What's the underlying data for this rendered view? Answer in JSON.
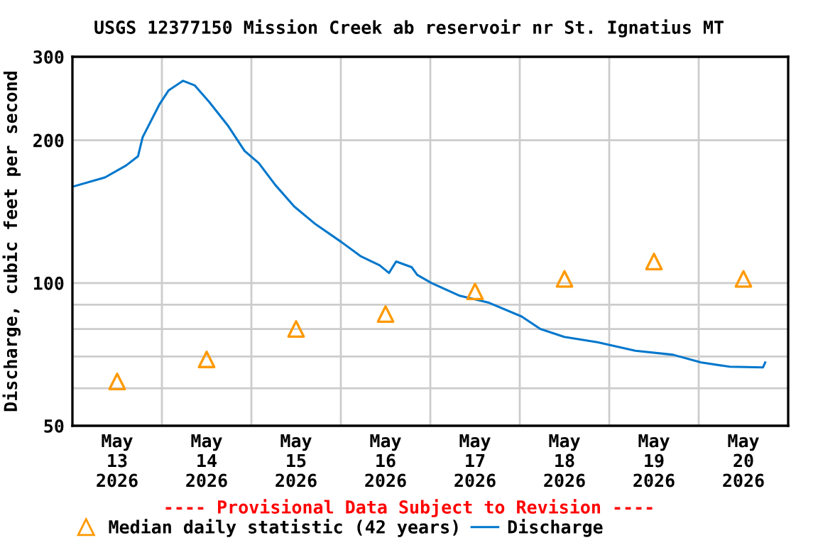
{
  "chart_data": {
    "type": "line",
    "title": "USGS 12377150 Mission Creek ab reservoir nr St. Ignatius MT",
    "ylabel": "Discharge, cubic feet per second",
    "annotations": [
      "---- Provisional Data Subject to Revision ----"
    ],
    "log": "y",
    "grid": true,
    "legend": "bottom",
    "xlim": [
      "2026-05-13T00:00",
      "2026-05-21T00:00"
    ],
    "xticks": [
      {
        "value": "2026-05-13T12:00",
        "label": "May\n13\n2026"
      },
      {
        "value": "2026-05-14T00:00",
        "label": null
      },
      {
        "value": "2026-05-14T12:00",
        "label": "May\n14\n2026"
      },
      {
        "value": "2026-05-15T00:00",
        "label": null
      },
      {
        "value": "2026-05-15T12:00",
        "label": "May\n15\n2026"
      },
      {
        "value": "2026-05-16T00:00",
        "label": null
      },
      {
        "value": "2026-05-16T12:00",
        "label": "May\n16\n2026"
      },
      {
        "value": "2026-05-17T00:00",
        "label": null
      },
      {
        "value": "2026-05-17T12:00",
        "label": "May\n17\n2026"
      },
      {
        "value": "2026-05-18T00:00",
        "label": null
      },
      {
        "value": "2026-05-18T12:00",
        "label": "May\n18\n2026"
      },
      {
        "value": "2026-05-19T00:00",
        "label": null
      },
      {
        "value": "2026-05-19T12:00",
        "label": "May\n19\n2026"
      },
      {
        "value": "2026-05-20T00:00",
        "label": null
      },
      {
        "value": "2026-05-20T12:00",
        "label": "May\n20\n2026"
      }
    ],
    "ylim": [
      50,
      300
    ],
    "yticks": [
      50,
      {
        "value": 60,
        "label": null
      },
      {
        "value": 70,
        "label": null
      },
      {
        "value": 80,
        "label": null
      },
      {
        "value": 90,
        "label": null
      },
      100,
      200,
      300
    ],
    "series": [
      {
        "name": "Median daily statistic (42 years)",
        "type": "scatter",
        "marker": "triangle",
        "color": "#ff9900",
        "x": [
          "2026-05-13T12:00",
          "2026-05-14T12:00",
          "2026-05-15T12:00",
          "2026-05-16T12:00",
          "2026-05-17T12:00",
          "2026-05-18T12:00",
          "2026-05-19T12:00",
          "2026-05-20T12:00"
        ],
        "values": [
          62,
          69,
          80,
          86,
          96,
          102,
          111,
          102
        ]
      },
      {
        "name": "Discharge",
        "marker": "none",
        "line_style": "solid",
        "color": "#0077cc",
        "x": [
          "2026-05-13T00:30",
          "2026-05-13T08:45",
          "2026-05-13T14:25",
          "2026-05-13T17:35",
          "2026-05-13T18:50",
          "2026-05-13T23:20",
          "2026-05-14T01:50",
          "2026-05-14T05:40",
          "2026-05-14T08:50",
          "2026-05-14T12:40",
          "2026-05-14T17:40",
          "2026-05-14T22:10",
          "2026-05-15T02:00",
          "2026-05-15T06:25",
          "2026-05-15T11:30",
          "2026-05-15T17:15",
          "2026-05-16T00:10",
          "2026-05-16T05:15",
          "2026-05-16T10:25",
          "2026-05-16T12:55",
          "2026-05-16T14:50",
          "2026-05-16T19:00",
          "2026-05-16T20:30",
          "2026-05-17T00:20",
          "2026-05-17T07:55",
          "2026-05-17T15:30",
          "2026-05-18T00:30",
          "2026-05-18T05:30",
          "2026-05-18T11:55",
          "2026-05-18T20:50",
          "2026-05-19T07:00",
          "2026-05-19T17:05",
          "2026-05-20T00:40",
          "2026-05-20T08:20",
          "2026-05-20T17:15",
          "2026-05-20T17:50"
        ],
        "values": [
          160,
          167,
          177,
          185,
          203,
          238,
          255,
          267,
          261,
          241,
          215,
          190,
          179,
          161,
          145,
          133,
          122,
          114,
          109,
          105,
          111,
          108,
          104,
          100,
          94,
          91,
          85,
          80,
          77,
          75,
          72,
          70.6,
          68,
          66.6,
          66.4,
          68
        ]
      }
    ]
  }
}
